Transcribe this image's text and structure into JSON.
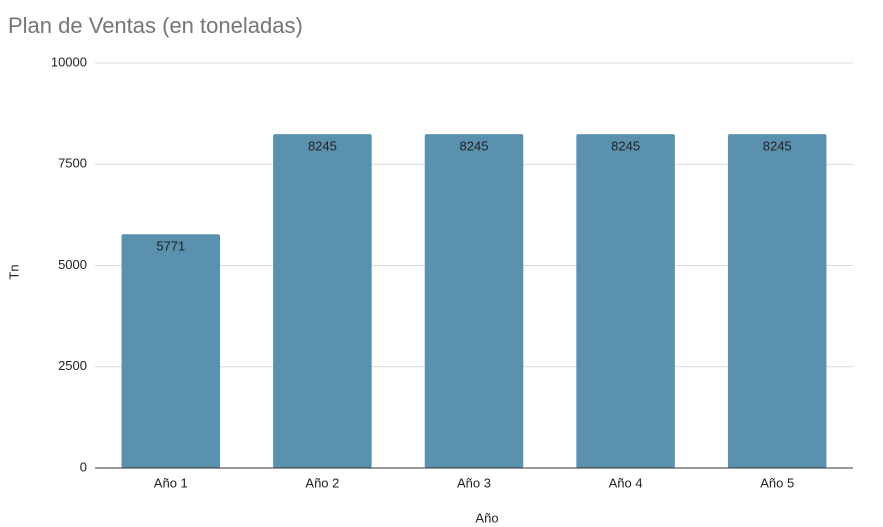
{
  "chart_data": {
    "type": "bar",
    "title": "Plan de Ventas (en toneladas)",
    "x_label": "Año",
    "y_label": "Tn",
    "categories": [
      "Año 1",
      "Año 2",
      "Año 3",
      "Año 4",
      "Año 5"
    ],
    "values": [
      5771,
      8245,
      8245,
      8245,
      8245
    ],
    "color": "#5a91ae",
    "ylim": [
      0,
      10000
    ],
    "yticks": [
      0,
      2500,
      5000,
      7500,
      10000
    ],
    "grid": true
  }
}
